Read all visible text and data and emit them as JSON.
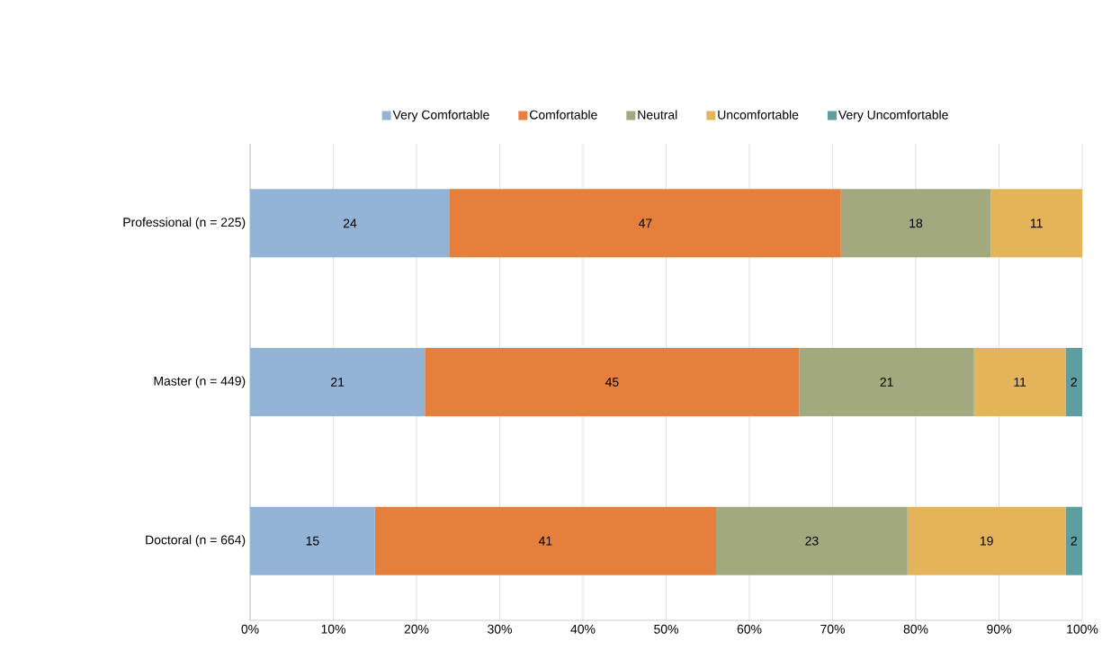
{
  "chart_data": {
    "type": "bar",
    "orientation": "horizontal",
    "stacked": true,
    "data_labels": true,
    "grid": "x",
    "legend": "top",
    "categories": [
      "Professional (n = 225)",
      "Master (n = 449)",
      "Doctoral (n = 664)"
    ],
    "xlim": [
      0,
      100
    ],
    "xticks": [
      {
        "value": 0,
        "label": "0%"
      },
      {
        "value": 10,
        "label": "10%"
      },
      {
        "value": 20,
        "label": "20%"
      },
      {
        "value": 30,
        "label": "30%"
      },
      {
        "value": 40,
        "label": "40%"
      },
      {
        "value": 50,
        "label": "50%"
      },
      {
        "value": 60,
        "label": "60%"
      },
      {
        "value": 70,
        "label": "70%"
      },
      {
        "value": 80,
        "label": "80%"
      },
      {
        "value": 90,
        "label": "90%"
      },
      {
        "value": 100,
        "label": "100%"
      }
    ],
    "series": [
      {
        "name": "Very Comfortable",
        "color": "#93b3d7",
        "values": [
          24,
          21,
          15
        ]
      },
      {
        "name": "Comfortable",
        "color": "#e67e3c",
        "values": [
          47,
          45,
          41
        ]
      },
      {
        "name": "Neutral",
        "color": "#a2a97f",
        "values": [
          18,
          21,
          23
        ]
      },
      {
        "name": "Uncomfortable",
        "color": "#e3b45a",
        "values": [
          11,
          11,
          19
        ]
      },
      {
        "name": "Very Uncomfortable",
        "color": "#5f9ea0",
        "values": [
          null,
          2,
          2
        ]
      }
    ]
  }
}
